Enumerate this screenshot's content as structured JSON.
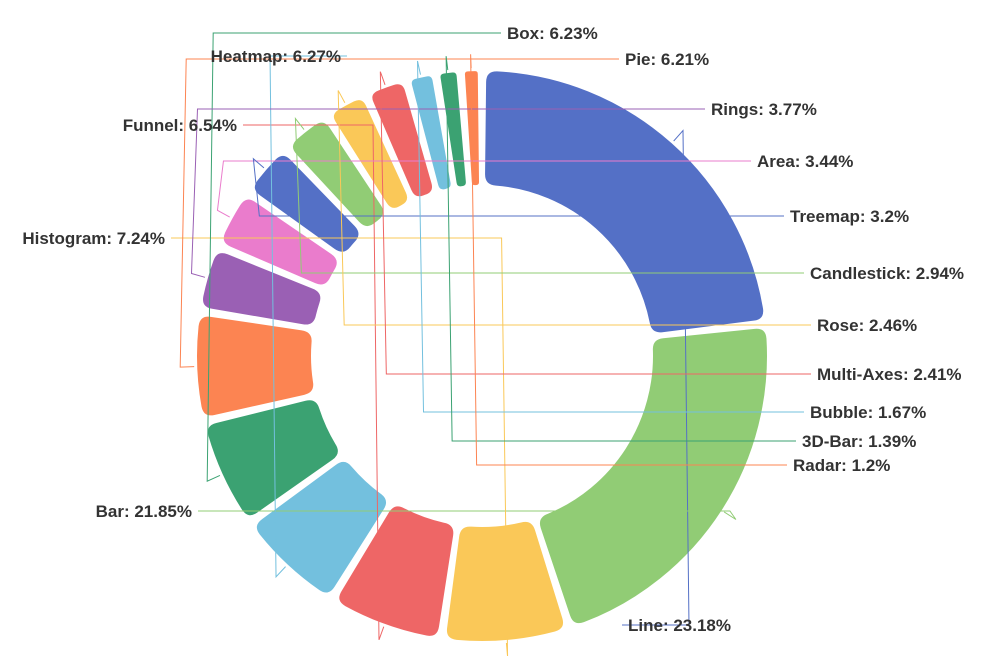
{
  "chart_data": {
    "type": "pie",
    "variant": "rounded-donut",
    "title": "",
    "legend": "none",
    "series": [
      {
        "values": [
          {
            "name": "Line",
            "value": 23.18,
            "label": "Line: 23.18%",
            "color": "#5470c6"
          },
          {
            "name": "Bar",
            "value": 21.85,
            "label": "Bar: 21.85%",
            "color": "#91cc75"
          },
          {
            "name": "Histogram",
            "value": 7.24,
            "label": "Histogram: 7.24%",
            "color": "#fac858"
          },
          {
            "name": "Funnel",
            "value": 6.54,
            "label": "Funnel: 6.54%",
            "color": "#ee6666"
          },
          {
            "name": "Heatmap",
            "value": 6.27,
            "label": "Heatmap: 6.27%",
            "color": "#73c0de"
          },
          {
            "name": "Box",
            "value": 6.23,
            "label": "Box: 6.23%",
            "color": "#3ba272"
          },
          {
            "name": "Pie",
            "value": 6.21,
            "label": "Pie: 6.21%",
            "color": "#fc8452"
          },
          {
            "name": "Rings",
            "value": 3.77,
            "label": "Rings: 3.77%",
            "color": "#9a60b4"
          },
          {
            "name": "Area",
            "value": 3.44,
            "label": "Area: 3.44%",
            "color": "#ea7ccc"
          },
          {
            "name": "Treemap",
            "value": 3.2,
            "label": "Treemap: 3.2%",
            "color": "#5470c6"
          },
          {
            "name": "Candlestick",
            "value": 2.94,
            "label": "Candlestick: 2.94%",
            "color": "#91cc75"
          },
          {
            "name": "Rose",
            "value": 2.46,
            "label": "Rose: 2.46%",
            "color": "#fac858"
          },
          {
            "name": "Multi-Axes",
            "value": 2.41,
            "label": "Multi-Axes: 2.41%",
            "color": "#ee6666"
          },
          {
            "name": "Bubble",
            "value": 1.67,
            "label": "Bubble: 1.67%",
            "color": "#73c0de"
          },
          {
            "name": "3D-Bar",
            "value": 1.39,
            "label": "3D-Bar: 1.39%",
            "color": "#3ba272"
          },
          {
            "name": "Radar",
            "value": 1.2,
            "label": "Radar: 1.2%",
            "color": "#fc8452"
          }
        ]
      }
    ]
  }
}
